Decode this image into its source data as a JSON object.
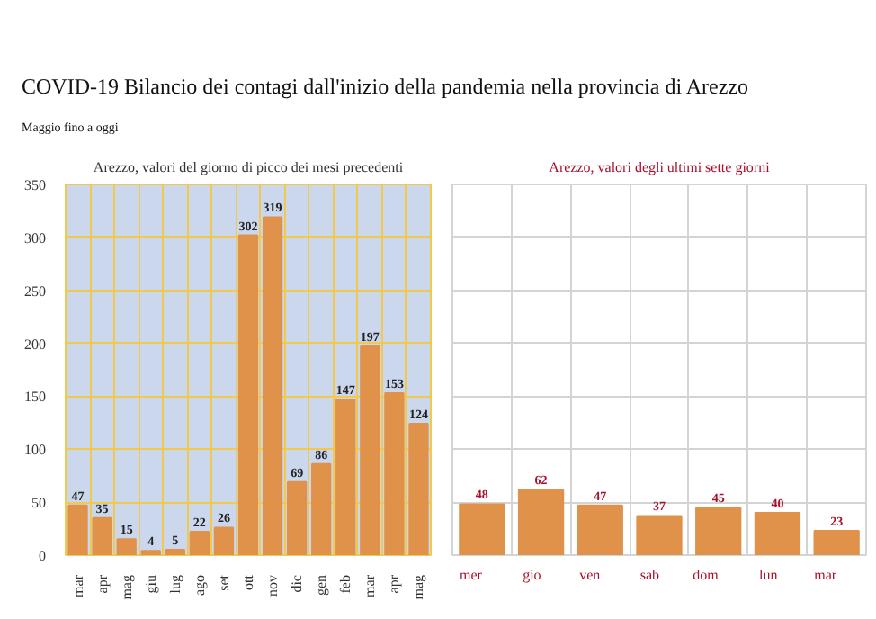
{
  "chart_data": [
    {
      "type": "bar",
      "title": "COVID-19 Bilancio dei contagi dall'inizio della pandemia nella provincia di Arezzo",
      "subtitle": "Maggio fino a oggi",
      "xlabel": "Arezzo, valori del giorno di picco dei mesi precedenti",
      "categories": [
        "mar",
        "apr",
        "mag",
        "giu",
        "lug",
        "ago",
        "set",
        "ott",
        "nov",
        "dic",
        "gen",
        "feb",
        "mar",
        "apr",
        "mag"
      ],
      "values": [
        47,
        35,
        15,
        4,
        5,
        22,
        26,
        302,
        319,
        69,
        86,
        147,
        197,
        153,
        124
      ],
      "color": "#e0914a",
      "ylim": [
        0,
        350
      ],
      "yticks": [
        0,
        50,
        100,
        150,
        200,
        250,
        300,
        350
      ],
      "grid": true,
      "data_labels": true
    },
    {
      "type": "bar",
      "xlabel": "Arezzo, valori degli ultimi sette giorni",
      "categories": [
        "mer",
        "gio",
        "ven",
        "sab",
        "dom",
        "lun",
        "mar"
      ],
      "values": [
        48,
        62,
        47,
        37,
        45,
        40,
        23
      ],
      "color": "#e0914a",
      "ylim": [
        0,
        350
      ],
      "yticks": [
        0,
        50,
        100,
        150,
        200,
        250,
        300,
        350
      ],
      "grid": true,
      "data_labels": true,
      "tick_labels": "x"
    }
  ]
}
